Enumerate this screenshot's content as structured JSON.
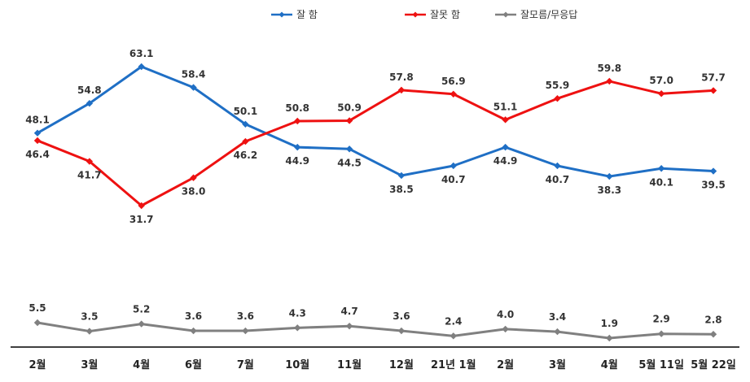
{
  "chart_data": {
    "type": "line",
    "categories": [
      "2월",
      "3월",
      "4월",
      "6월",
      "7월",
      "10월",
      "11월",
      "12월",
      "21년 1월",
      "2월",
      "3월",
      "4월",
      "5월 11일",
      "5월 22일"
    ],
    "series": [
      {
        "name": "잘 함",
        "color": "#1F6FC5",
        "values": [
          48.1,
          54.8,
          63.1,
          58.4,
          50.1,
          44.9,
          44.5,
          38.5,
          40.7,
          44.9,
          40.7,
          38.3,
          40.1,
          39.5
        ]
      },
      {
        "name": "잘못 함",
        "color": "#EE1111",
        "values": [
          46.4,
          41.7,
          31.7,
          38.0,
          46.2,
          50.8,
          50.9,
          57.8,
          56.9,
          51.1,
          55.9,
          59.8,
          57.0,
          57.7
        ]
      },
      {
        "name": "잘모름/무응답",
        "color": "#808080",
        "values": [
          5.5,
          3.5,
          5.2,
          3.6,
          3.6,
          4.3,
          4.7,
          3.6,
          2.4,
          4.0,
          3.4,
          1.9,
          2.9,
          2.8
        ]
      }
    ],
    "legend_position": "top-center",
    "grid": false
  }
}
